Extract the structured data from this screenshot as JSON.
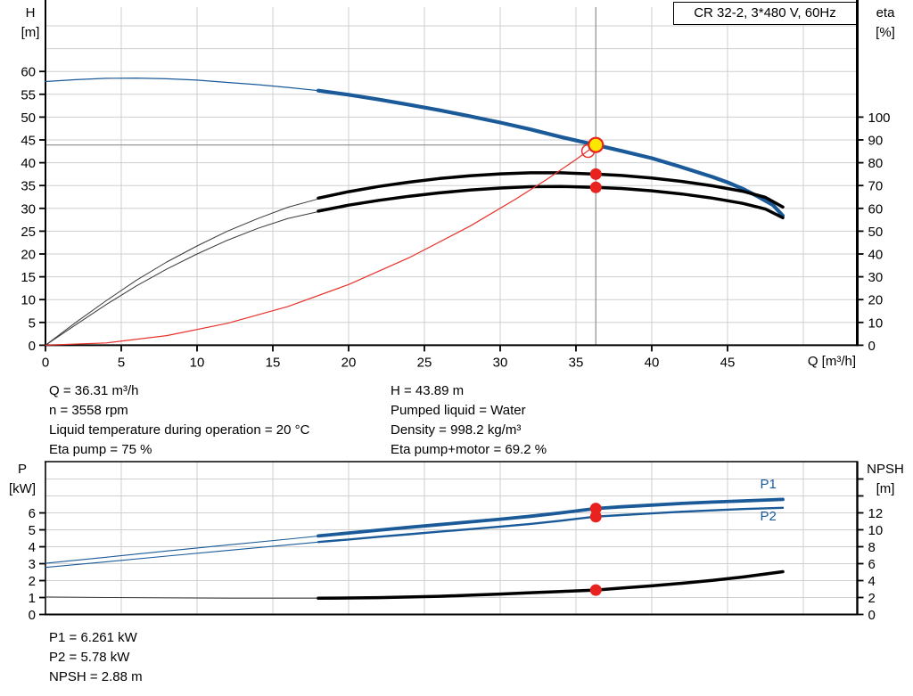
{
  "duty_info_left": [
    "Q = 36.31 m³/h",
    "n = 3558 rpm",
    "Liquid temperature during operation = 20 °C",
    "Eta pump = 75 %"
  ],
  "duty_info_right": [
    "H = 43.89 m",
    "Pumped liquid = Water",
    "Density = 998.2 kg/m³",
    "Eta pump+motor = 69.2 %"
  ],
  "power_info": [
    "P1 = 6.261 kW",
    "P2 = 5.78 kW",
    "NPSH = 2.88 m"
  ],
  "colors": {
    "curve_blue": "#1a5a99",
    "curve_black": "#000000",
    "system_red": "#e8312a",
    "dot_red": "#e8231f",
    "duty_yellow": "#ffe600",
    "grid": "#cfcfcf",
    "guide_gray": "#8c8c8c"
  },
  "chart_data": [
    {
      "type": "line",
      "name": "qh",
      "title": "CR 32-2, 3*480 V, 60Hz",
      "x_axis": {
        "label": "Q [m³/h]",
        "min": 0,
        "max": 53.56,
        "ticks": [
          0,
          5,
          10,
          15,
          20,
          25,
          30,
          35,
          40,
          45
        ],
        "grid": [
          5,
          10,
          15,
          20,
          25,
          30,
          35,
          40,
          45,
          50
        ]
      },
      "y_left": {
        "label": "H",
        "unit": "[m]",
        "min": 0,
        "max": 74.1,
        "ticks": [
          0,
          5,
          10,
          15,
          20,
          25,
          30,
          35,
          40,
          45,
          50,
          55,
          60
        ],
        "grid": [
          5,
          10,
          15,
          20,
          25,
          30,
          35,
          40,
          45,
          50,
          55,
          60,
          65,
          70
        ]
      },
      "y_right": {
        "label": "eta",
        "unit": "[%]",
        "min": 0,
        "max": 148.2,
        "ticks": [
          0,
          10,
          20,
          30,
          40,
          50,
          60,
          70,
          80,
          90,
          100
        ]
      },
      "duty_point": {
        "q": 36.31,
        "h": 43.89,
        "eta_pump": 75,
        "eta_pump_motor": 69.2
      },
      "guide_lines": [
        {
          "dir": "h",
          "axis": "left",
          "value": 43.89,
          "q1": 0,
          "q2": 36.31
        },
        {
          "dir": "v",
          "q": 36.31
        }
      ],
      "series": [
        {
          "name": "qh-curve-thin",
          "axis": "left",
          "color": "#1a5a99",
          "width": 1.2,
          "points": [
            [
              0,
              57.8
            ],
            [
              2,
              58.2
            ],
            [
              4,
              58.5
            ],
            [
              6,
              58.55
            ],
            [
              8,
              58.4
            ],
            [
              10,
              58.1
            ],
            [
              12,
              57.6
            ],
            [
              14,
              57.1
            ],
            [
              16,
              56.5
            ],
            [
              18.3,
              55.7
            ]
          ]
        },
        {
          "name": "qh-curve",
          "axis": "left",
          "color": "#1a5a99",
          "width": 4.2,
          "points": [
            [
              18,
              55.8
            ],
            [
              20,
              54.9
            ],
            [
              22,
              53.85
            ],
            [
              24,
              52.7
            ],
            [
              26,
              51.5
            ],
            [
              28,
              50.2
            ],
            [
              30,
              48.8
            ],
            [
              32,
              47.3
            ],
            [
              34,
              45.65
            ],
            [
              36.31,
              43.89
            ],
            [
              38,
              42.6
            ],
            [
              40,
              41.0
            ],
            [
              42,
              39.0
            ],
            [
              44,
              36.9
            ],
            [
              45,
              35.7
            ],
            [
              46,
              34.3
            ],
            [
              47,
              32.6
            ],
            [
              48,
              30.7
            ],
            [
              48.65,
              28.4
            ]
          ]
        },
        {
          "name": "eta-pump-thin",
          "axis": "right",
          "color": "#3a3a3a",
          "width": 1,
          "points": [
            [
              0,
              0
            ],
            [
              2,
              10
            ],
            [
              4,
              19.5
            ],
            [
              6,
              28.5
            ],
            [
              8,
              36.5
            ],
            [
              10,
              43.5
            ],
            [
              12,
              50
            ],
            [
              14,
              55.5
            ],
            [
              16,
              60.5
            ],
            [
              18.3,
              64.7
            ]
          ]
        },
        {
          "name": "eta-pump",
          "axis": "right",
          "color": "#000000",
          "width": 3.5,
          "points": [
            [
              18,
              64.5
            ],
            [
              20,
              67.3
            ],
            [
              22,
              69.6
            ],
            [
              24,
              71.5
            ],
            [
              26,
              73.1
            ],
            [
              28,
              74.3
            ],
            [
              30,
              75.1
            ],
            [
              32,
              75.6
            ],
            [
              34,
              75.6
            ],
            [
              36.31,
              75
            ],
            [
              38,
              74.4
            ],
            [
              40,
              73.3
            ],
            [
              42,
              71.8
            ],
            [
              44,
              69.9
            ],
            [
              46,
              67.5
            ],
            [
              47.5,
              64.8
            ],
            [
              48.65,
              60.6
            ]
          ]
        },
        {
          "name": "eta-pump-motor-thin",
          "axis": "right",
          "color": "#3a3a3a",
          "width": 1,
          "points": [
            [
              0,
              0
            ],
            [
              2,
              9
            ],
            [
              4,
              17.8
            ],
            [
              6,
              26
            ],
            [
              8,
              33.4
            ],
            [
              10,
              40
            ],
            [
              12,
              46
            ],
            [
              14,
              51.2
            ],
            [
              16,
              55.6
            ],
            [
              18.3,
              59
            ]
          ]
        },
        {
          "name": "eta-pump-motor",
          "axis": "right",
          "color": "#000000",
          "width": 3.5,
          "points": [
            [
              18,
              58.8
            ],
            [
              20,
              61.4
            ],
            [
              22,
              63.5
            ],
            [
              24,
              65.3
            ],
            [
              26,
              66.8
            ],
            [
              28,
              68
            ],
            [
              30,
              68.9
            ],
            [
              32,
              69.5
            ],
            [
              34,
              69.6
            ],
            [
              36.31,
              69.2
            ],
            [
              38,
              68.7
            ],
            [
              40,
              67.7
            ],
            [
              42,
              66.3
            ],
            [
              44,
              64.5
            ],
            [
              46,
              62.2
            ],
            [
              47.5,
              59.7
            ],
            [
              48.65,
              55.9
            ]
          ]
        },
        {
          "name": "system-curve",
          "axis": "left",
          "color": "#e8312a",
          "width": 1.2,
          "points": [
            [
              0,
              0
            ],
            [
              4,
              0.5
            ],
            [
              8,
              2.1
            ],
            [
              12,
              4.8
            ],
            [
              16,
              8.5
            ],
            [
              20,
              13.3
            ],
            [
              24,
              19.2
            ],
            [
              28,
              26.1
            ],
            [
              31,
              32
            ],
            [
              33,
              36.2
            ],
            [
              35,
              40.7
            ],
            [
              36.31,
              43.89
            ]
          ]
        }
      ],
      "markers": [
        {
          "name": "requested-duty-point",
          "q": 35.8,
          "axis": "left",
          "value": 42.55,
          "r": 7,
          "stroke": "#e8312a",
          "stroke_width": 1.5
        },
        {
          "name": "eta-pump-dot",
          "q": 36.31,
          "axis": "right",
          "value": 75,
          "r": 6.5,
          "fill": "#e8231f"
        },
        {
          "name": "eta-pump-motor-dot",
          "q": 36.31,
          "axis": "right",
          "value": 69.2,
          "r": 6.5,
          "fill": "#e8231f"
        },
        {
          "name": "duty-point",
          "q": 36.31,
          "axis": "left",
          "value": 43.89,
          "r": 8,
          "fill": "#ffe600",
          "stroke": "#e8231f",
          "stroke_width": 2.2
        }
      ]
    },
    {
      "type": "line",
      "name": "pn",
      "x_axis": {
        "label": "",
        "min": 0,
        "max": 53.56,
        "ticks": [],
        "grid": [
          5,
          10,
          15,
          20,
          25,
          30,
          35,
          40,
          45,
          50
        ]
      },
      "y_left": {
        "label": "P",
        "unit": "[kW]",
        "min": 0,
        "max": 9.03,
        "ticks": [
          0,
          1,
          2,
          3,
          4,
          5,
          6
        ],
        "grid": [
          1,
          2,
          3,
          4,
          5,
          6,
          7,
          8
        ]
      },
      "y_right": {
        "label": "NPSH",
        "unit": "[m]",
        "min": 0,
        "max": 18.05,
        "ticks": [
          0,
          2,
          4,
          6,
          8,
          10,
          12
        ],
        "ticks_unlabeled": [
          14,
          16
        ]
      },
      "series": [
        {
          "name": "p1-thin",
          "axis": "left",
          "color": "#1a5a99",
          "width": 1.1,
          "points": [
            [
              0,
              3.02
            ],
            [
              4,
              3.38
            ],
            [
              8,
              3.75
            ],
            [
              12,
              4.1
            ],
            [
              16,
              4.45
            ],
            [
              18.3,
              4.66
            ]
          ]
        },
        {
          "name": "p1",
          "axis": "left",
          "color": "#1a5a99",
          "width": 3.8,
          "points": [
            [
              18,
              4.64
            ],
            [
              20,
              4.81
            ],
            [
              22,
              4.98
            ],
            [
              24,
              5.15
            ],
            [
              26,
              5.31
            ],
            [
              28,
              5.47
            ],
            [
              30,
              5.63
            ],
            [
              32,
              5.8
            ],
            [
              34,
              6.0
            ],
            [
              36.31,
              6.261
            ],
            [
              38,
              6.36
            ],
            [
              40,
              6.46
            ],
            [
              42,
              6.56
            ],
            [
              44,
              6.64
            ],
            [
              46,
              6.71
            ],
            [
              48.65,
              6.8
            ]
          ]
        },
        {
          "name": "p2-thin",
          "axis": "left",
          "color": "#1a5a99",
          "width": 1.1,
          "points": [
            [
              0,
              2.78
            ],
            [
              4,
              3.11
            ],
            [
              8,
              3.45
            ],
            [
              12,
              3.78
            ],
            [
              16,
              4.11
            ],
            [
              18.3,
              4.3
            ]
          ]
        },
        {
          "name": "p2",
          "axis": "left",
          "color": "#1a5a99",
          "width": 2.4,
          "points": [
            [
              18,
              4.28
            ],
            [
              20,
              4.43
            ],
            [
              22,
              4.59
            ],
            [
              24,
              4.74
            ],
            [
              26,
              4.89
            ],
            [
              28,
              5.04
            ],
            [
              30,
              5.19
            ],
            [
              32,
              5.35
            ],
            [
              34,
              5.54
            ],
            [
              36.31,
              5.78
            ],
            [
              38,
              5.87
            ],
            [
              40,
              5.97
            ],
            [
              42,
              6.07
            ],
            [
              44,
              6.15
            ],
            [
              46,
              6.23
            ],
            [
              48.65,
              6.3
            ]
          ]
        },
        {
          "name": "npsh-thin",
          "axis": "right",
          "color": "#3a3a3a",
          "width": 1,
          "points": [
            [
              0,
              2.06
            ],
            [
              4,
              2.0
            ],
            [
              8,
              1.96
            ],
            [
              12,
              1.93
            ],
            [
              16,
              1.92
            ],
            [
              18.3,
              1.92
            ]
          ]
        },
        {
          "name": "npsh",
          "axis": "right",
          "color": "#000000",
          "width": 3.5,
          "points": [
            [
              18,
              1.92
            ],
            [
              20,
              1.95
            ],
            [
              22,
              1.99
            ],
            [
              24,
              2.06
            ],
            [
              26,
              2.15
            ],
            [
              28,
              2.27
            ],
            [
              30,
              2.41
            ],
            [
              32,
              2.57
            ],
            [
              34,
              2.72
            ],
            [
              36.31,
              2.88
            ],
            [
              38,
              3.12
            ],
            [
              40,
              3.38
            ],
            [
              42,
              3.68
            ],
            [
              44,
              4.02
            ],
            [
              46,
              4.42
            ],
            [
              48.65,
              5.05
            ]
          ]
        }
      ],
      "markers": [
        {
          "name": "p1-dot",
          "q": 36.31,
          "axis": "left",
          "value": 6.261,
          "r": 6.5,
          "fill": "#e8231f"
        },
        {
          "name": "p2-dot",
          "q": 36.31,
          "axis": "left",
          "value": 5.78,
          "r": 6.5,
          "fill": "#e8231f"
        },
        {
          "name": "npsh-dot",
          "q": 36.31,
          "axis": "right",
          "value": 2.88,
          "r": 6.5,
          "fill": "#e8231f"
        }
      ],
      "annotations": [
        {
          "text": "P1",
          "q": 47.15,
          "axis": "left",
          "value": 7.45,
          "color": "#1a5a99"
        },
        {
          "text": "P2",
          "q": 47.15,
          "axis": "left",
          "value": 5.55,
          "color": "#1a5a99"
        }
      ]
    }
  ]
}
